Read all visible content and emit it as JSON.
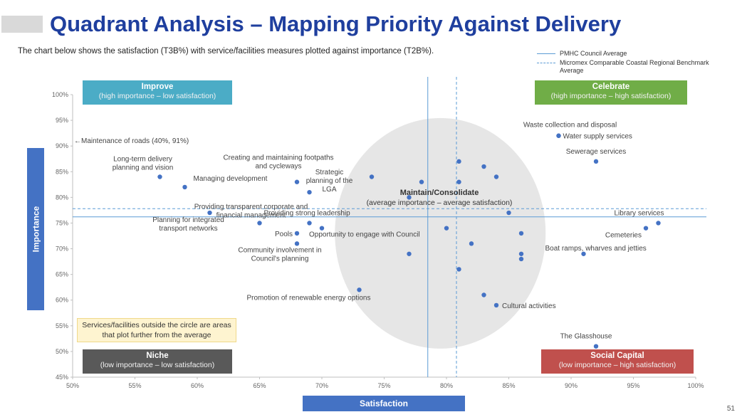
{
  "header": {
    "title": "Quadrant Analysis – Mapping Priority Against Delivery",
    "subtitle": "The chart below shows the satisfaction (T3B%) with service/facilities measures plotted against importance (T2B%)."
  },
  "legend": {
    "solid_label": "PMHC Council Average",
    "dashed_label": "Micromex Comparable Coastal Regional Benchmark Average"
  },
  "quadrants": {
    "improve": {
      "title": "Improve",
      "subtitle": "(high importance – low satisfaction)"
    },
    "celebrate": {
      "title": "Celebrate",
      "subtitle": "(high importance – high satisfaction)"
    },
    "niche": {
      "title": "Niche",
      "subtitle": "(low importance – low satisfaction)"
    },
    "social": {
      "title": "Social Capital",
      "subtitle": "(low importance – high satisfaction)"
    }
  },
  "center": {
    "title": "Maintain/Consolidate",
    "subtitle": "(average importance – average satisfaction)"
  },
  "note": "Services/facilities outside the circle are areas that plot further from the average",
  "page_number": "51",
  "colors": {
    "title": "#1f3f9e",
    "points": "#4472c4",
    "reference_lines": "#5b9bd5",
    "circle": "#e6e6e6"
  },
  "chart_data": {
    "type": "scatter",
    "xlabel": "Satisfaction",
    "ylabel": "Importance",
    "xlim": [
      50,
      100
    ],
    "ylim": [
      45,
      100
    ],
    "x_ticks": [
      "50%",
      "55%",
      "60%",
      "65%",
      "70%",
      "75%",
      "80%",
      "85%",
      "90%",
      "95%",
      "100%"
    ],
    "y_ticks": [
      "45%",
      "50%",
      "55%",
      "60%",
      "65%",
      "70%",
      "75%",
      "80%",
      "85%",
      "90%",
      "95%",
      "100%"
    ],
    "council_average_satisfaction": 78.5,
    "benchmark_average_satisfaction": 80.8,
    "council_average_importance": 76.2,
    "benchmark_average_importance": 77.8,
    "offchart_annotation": "←Maintenance of roads (40%, 91%)",
    "points": [
      {
        "x": 57,
        "y": 84,
        "label": "Long-term delivery\nplanning and vision"
      },
      {
        "x": 59,
        "y": 82,
        "label": "Managing development"
      },
      {
        "x": 61,
        "y": 77,
        "label": "Planning for integrated\ntransport networks"
      },
      {
        "x": 65,
        "y": 75,
        "label": "Providing transparent corporate and\nfinancial management"
      },
      {
        "x": 68,
        "y": 83,
        "label": "Creating and maintaining footpaths\nand cycleways"
      },
      {
        "x": 69,
        "y": 81,
        "label": "Strategic\nplanning of the\nLGA"
      },
      {
        "x": 68,
        "y": 73,
        "label": "Pools"
      },
      {
        "x": 69,
        "y": 75,
        "label": "Providing strong leadership"
      },
      {
        "x": 70,
        "y": 74,
        "label": "Opportunity to engage with Council"
      },
      {
        "x": 68,
        "y": 71,
        "label": "Community involvement in\nCouncil's planning"
      },
      {
        "x": 73,
        "y": 62,
        "label": "Promotion of renewable energy options"
      },
      {
        "x": 74,
        "y": 84,
        "label": ""
      },
      {
        "x": 77,
        "y": 80,
        "label": ""
      },
      {
        "x": 77,
        "y": 69,
        "label": ""
      },
      {
        "x": 78,
        "y": 83,
        "label": ""
      },
      {
        "x": 80,
        "y": 74,
        "label": ""
      },
      {
        "x": 81,
        "y": 87,
        "label": ""
      },
      {
        "x": 81,
        "y": 83,
        "label": ""
      },
      {
        "x": 81,
        "y": 66,
        "label": ""
      },
      {
        "x": 82,
        "y": 71,
        "label": ""
      },
      {
        "x": 83,
        "y": 86,
        "label": ""
      },
      {
        "x": 83,
        "y": 61,
        "label": ""
      },
      {
        "x": 84,
        "y": 84,
        "label": ""
      },
      {
        "x": 84,
        "y": 59,
        "label": "Cultural activities"
      },
      {
        "x": 85,
        "y": 77,
        "label": ""
      },
      {
        "x": 86,
        "y": 73,
        "label": ""
      },
      {
        "x": 86,
        "y": 69,
        "label": ""
      },
      {
        "x": 86,
        "y": 68,
        "label": ""
      },
      {
        "x": 89,
        "y": 92,
        "label": "Waste collection and disposal"
      },
      {
        "x": 89,
        "y": 92,
        "label": "Water supply services"
      },
      {
        "x": 92,
        "y": 87,
        "label": "Sewerage services"
      },
      {
        "x": 91,
        "y": 69,
        "label": "Boat ramps, wharves and jetties"
      },
      {
        "x": 96,
        "y": 74,
        "label": "Cemeteries"
      },
      {
        "x": 97,
        "y": 75,
        "label": "Library services"
      },
      {
        "x": 92,
        "y": 51,
        "label": "The Glasshouse"
      }
    ]
  }
}
